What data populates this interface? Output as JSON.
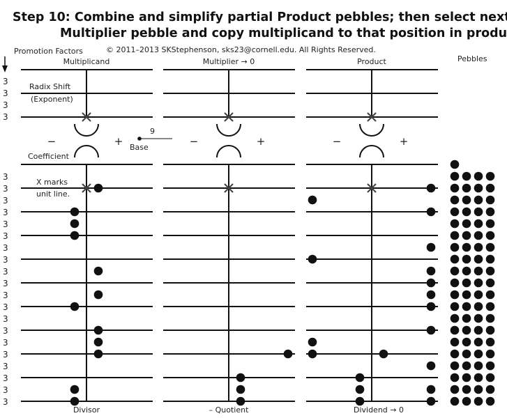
{
  "title": {
    "line1": "Step 10: Combine and simplify partial Product pebbles; then select next",
    "line2": "Multiplier pebble and copy multiplicand to that position in product."
  },
  "copyright": "© 2011–2013 SKStephenson, sks23@cornell.edu. All Rights Reserved.",
  "promotion_factors_label": "Promotion Factors",
  "pebbles_label": "Pebbles",
  "annotations": {
    "radix_shift": "Radix Shift",
    "exponent": "(Exponent)",
    "coefficient": "Coefficient",
    "x_marks": "X marks",
    "unit_line": "unit line.",
    "base_label": "Base",
    "base_value": "9",
    "minus": "−",
    "plus": "+"
  },
  "promotion_factors": {
    "exponent_rows": [
      "3",
      "3",
      "3",
      "3"
    ],
    "coefficient_rows": [
      "3",
      "3",
      "3",
      "3",
      "3",
      "3",
      "3",
      "3",
      "3",
      "3",
      "3",
      "3",
      "3",
      "3",
      "3",
      "3",
      "3",
      "3",
      "3",
      "3"
    ]
  },
  "panels": [
    {
      "id": "multiplicand",
      "top_label": "Multiplicand",
      "bottom_label": "Divisor"
    },
    {
      "id": "multiplier",
      "top_label": "Multiplier → 0",
      "bottom_label": "– Quotient"
    },
    {
      "id": "product",
      "top_label": "Product",
      "bottom_label": "Dividend → 0"
    }
  ],
  "pebbles": {
    "multiplicand": [
      {
        "col": "right",
        "row": 2
      },
      {
        "col": "right",
        "row": 9
      },
      {
        "col": "right",
        "row": 11
      },
      {
        "col": "right",
        "row": 14
      },
      {
        "col": "right",
        "row": 15
      },
      {
        "col": "right",
        "row": 16
      },
      {
        "col": "left",
        "row": 4
      },
      {
        "col": "left",
        "row": 5
      },
      {
        "col": "left",
        "row": 6
      },
      {
        "col": "left",
        "row": 12
      },
      {
        "col": "left",
        "row": 19
      },
      {
        "col": "left",
        "row": 20
      }
    ],
    "multiplier": [
      {
        "col": "right",
        "row": 18
      },
      {
        "col": "right",
        "row": 19
      },
      {
        "col": "right",
        "row": 20
      },
      {
        "col": "far-right",
        "row": 16
      }
    ],
    "product": [
      {
        "col": "far-right",
        "row": 2
      },
      {
        "col": "far-right",
        "row": 4
      },
      {
        "col": "far-right",
        "row": 7
      },
      {
        "col": "far-right",
        "row": 9
      },
      {
        "col": "far-right",
        "row": 10
      },
      {
        "col": "far-right",
        "row": 11
      },
      {
        "col": "far-right",
        "row": 12
      },
      {
        "col": "far-right",
        "row": 14
      },
      {
        "col": "far-right",
        "row": 17
      },
      {
        "col": "far-right",
        "row": 19
      },
      {
        "col": "far-right",
        "row": 20
      },
      {
        "col": "far-left",
        "row": 3
      },
      {
        "col": "far-left",
        "row": 8
      },
      {
        "col": "far-left",
        "row": 15
      },
      {
        "col": "far-left",
        "row": 16
      },
      {
        "col": "right",
        "row": 16
      },
      {
        "col": "left",
        "row": 18
      },
      {
        "col": "left",
        "row": 19
      },
      {
        "col": "left",
        "row": 20
      }
    ]
  },
  "pebble_reserve": {
    "first_row_count": 1,
    "rows": 20,
    "per_row": 4
  },
  "colors": {
    "ink": "#111111",
    "mark": "#444444"
  }
}
